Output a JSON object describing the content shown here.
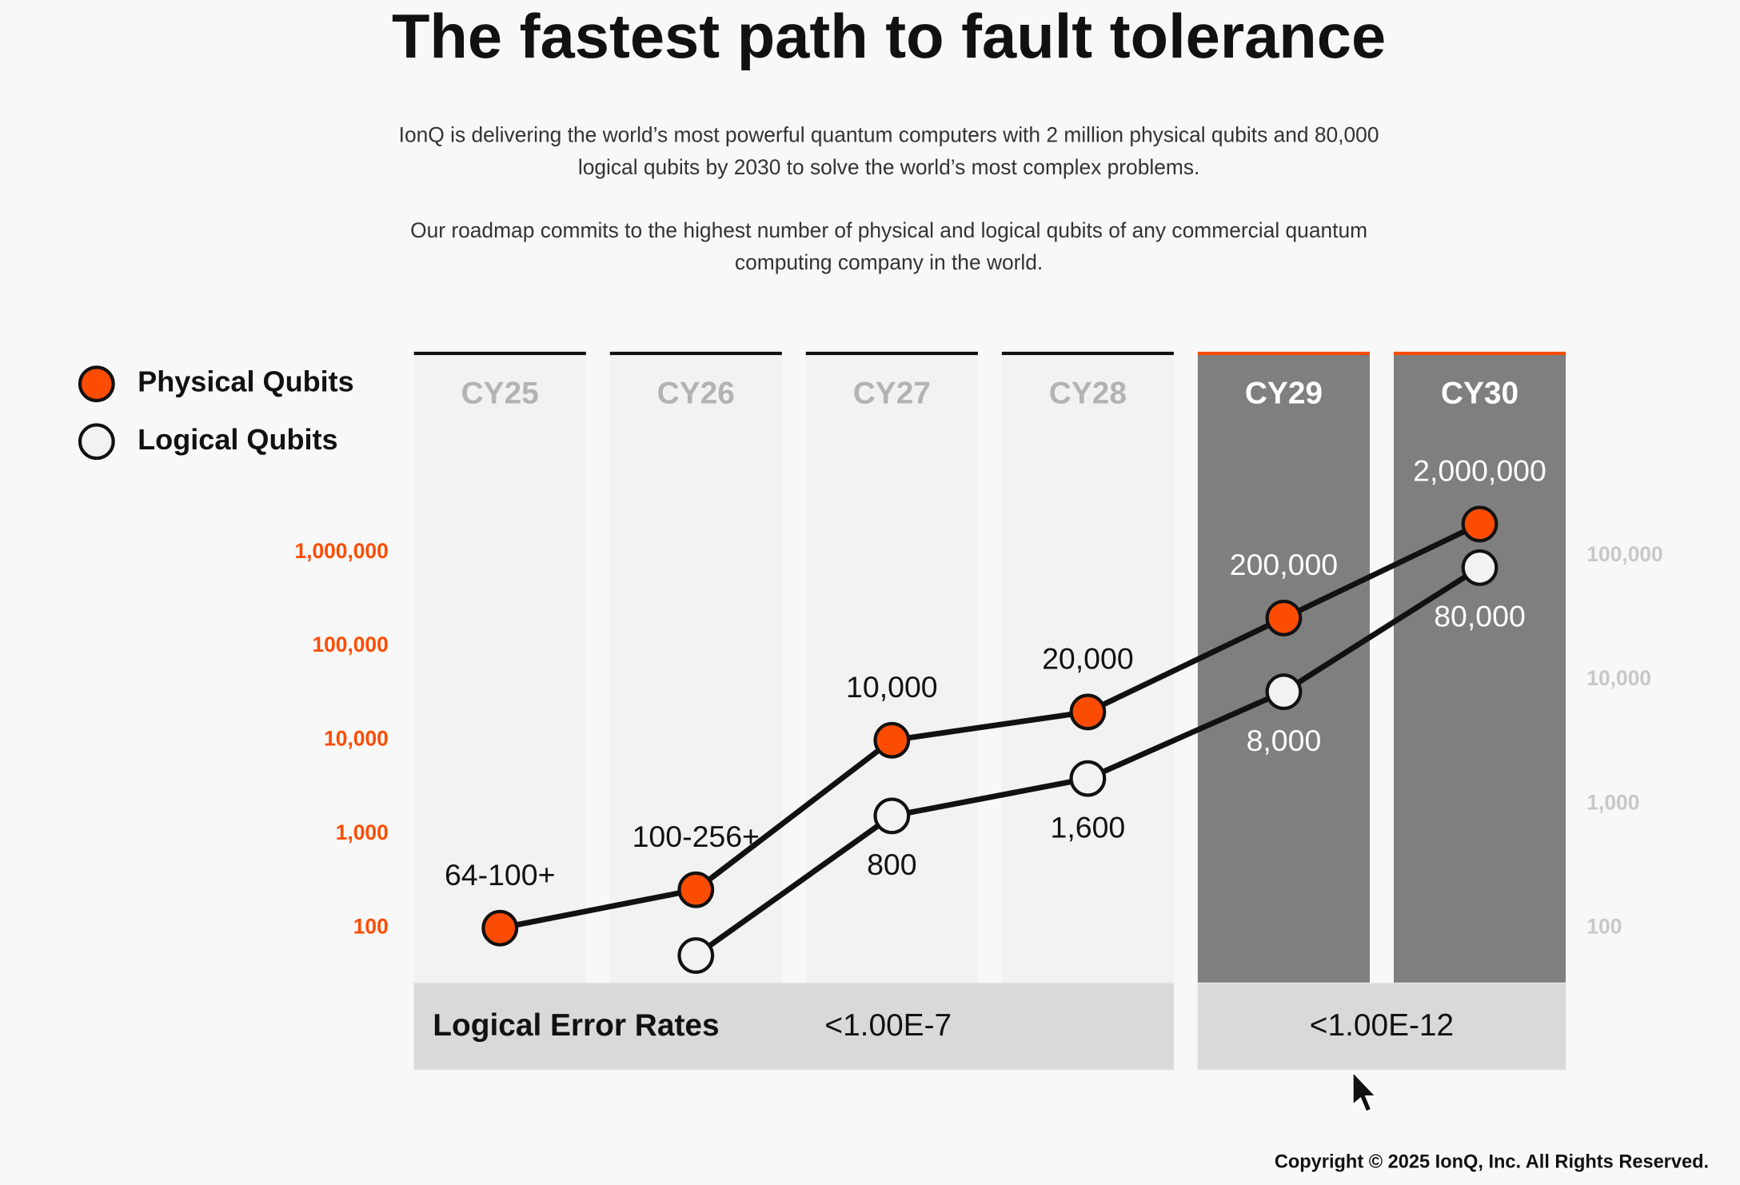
{
  "header": {
    "title": "The fastest path to fault tolerance",
    "paragraphs": [
      [
        "IonQ is delivering the world’s most powerful quantum computers with 2 million physical qubits and 80,000",
        "logical qubits by 2030 to solve the world’s most complex problems."
      ],
      [
        "Our roadmap commits to the highest number of physical and logical qubits of any commercial quantum",
        "computing company in the world."
      ]
    ]
  },
  "chart_data": {
    "type": "line",
    "categories": [
      "CY25",
      "CY26",
      "CY27",
      "CY28",
      "CY29",
      "CY30"
    ],
    "highlight": [
      false,
      false,
      false,
      false,
      true,
      true
    ],
    "log_scale": true,
    "ylim": [
      26,
      133000000
    ],
    "yticks": [
      100,
      {
        "value": 1000,
        "label": "1,000"
      },
      {
        "value": 10000,
        "label": "10,000"
      },
      {
        "value": 100000,
        "label": "100,000"
      },
      {
        "value": 1000000,
        "label": "1,000,000"
      }
    ],
    "y2lim": [
      36,
      4300000
    ],
    "y2ticks": [
      100,
      {
        "value": 1000,
        "label": "1,000"
      },
      {
        "value": 10000,
        "label": "10,000"
      },
      {
        "value": 100000,
        "label": "100,000"
      }
    ],
    "series": [
      {
        "name": "Physical Qubits",
        "color": "#fc4c02",
        "values": [
          100,
          256,
          10000,
          20000,
          200000,
          2000000
        ],
        "value_labels": [
          "64-100+",
          "100-256+",
          "10,000",
          "20,000",
          "200,000",
          "2,000,000"
        ]
      },
      {
        "name": "Logical Qubits",
        "color": "#f2f2f2",
        "axis": "y2",
        "values": [
          null,
          60,
          800,
          1600,
          8000,
          80000
        ],
        "value_labels": [
          null,
          null,
          "800",
          "1,600",
          "8,000",
          "80,000"
        ]
      }
    ],
    "error_rates": {
      "label": "Logical Error Rates",
      "groups": [
        "<1.00E-7",
        "<1.00E-12"
      ]
    }
  },
  "copyright": "Copyright © 2025 IonQ, Inc. All Rights Reserved."
}
